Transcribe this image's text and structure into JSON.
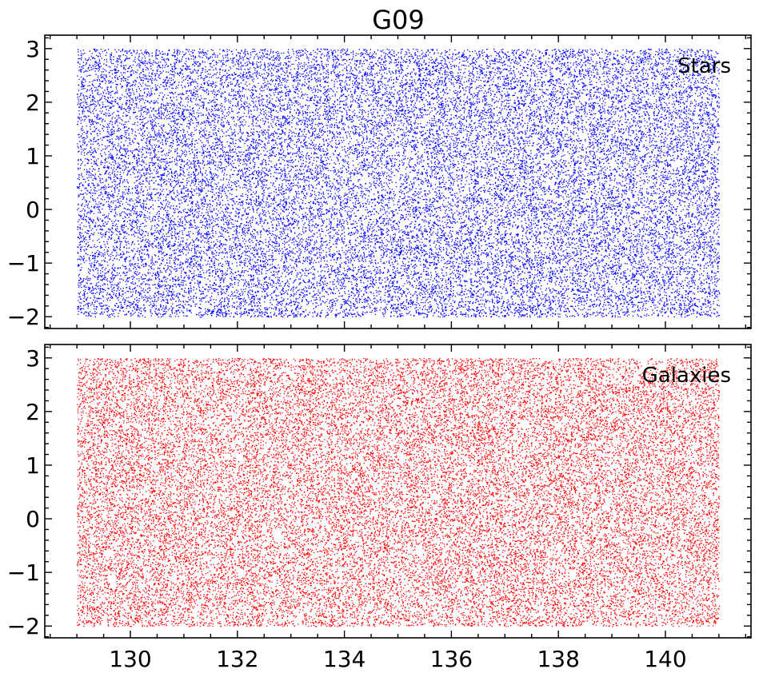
{
  "title": "G09",
  "chart_data": [
    {
      "type": "scatter",
      "panel": "top",
      "title": "G09",
      "annotation": "Stars",
      "color": "#0000ff",
      "xlim": [
        128.4,
        141.6
      ],
      "ylim": [
        -2.22,
        3.25
      ],
      "x_ticks": [
        130,
        132,
        134,
        136,
        138,
        140
      ],
      "y_ticks": [
        3,
        2,
        1,
        0,
        -1,
        -2
      ],
      "y_tick_labels": [
        "3",
        "2",
        "1",
        "0",
        "−1",
        "−2"
      ],
      "show_x_tick_labels": false,
      "data_extent": {
        "x": [
          129.0,
          141.0
        ],
        "y": [
          -2.0,
          3.0
        ]
      },
      "point_count": 30000,
      "seed": 17
    },
    {
      "type": "scatter",
      "panel": "bottom",
      "annotation": "Galaxies",
      "color": "#ff0000",
      "xlim": [
        128.4,
        141.6
      ],
      "ylim": [
        -2.22,
        3.25
      ],
      "x_ticks": [
        130,
        132,
        134,
        136,
        138,
        140
      ],
      "x_tick_labels": [
        "130",
        "132",
        "134",
        "136",
        "138",
        "140"
      ],
      "y_ticks": [
        3,
        2,
        1,
        0,
        -1,
        -2
      ],
      "y_tick_labels": [
        "3",
        "2",
        "1",
        "0",
        "−1",
        "−2"
      ],
      "show_x_tick_labels": true,
      "data_extent": {
        "x": [
          129.0,
          141.0
        ],
        "y": [
          -2.0,
          3.0
        ]
      },
      "point_count": 30000,
      "seed": 91
    }
  ]
}
